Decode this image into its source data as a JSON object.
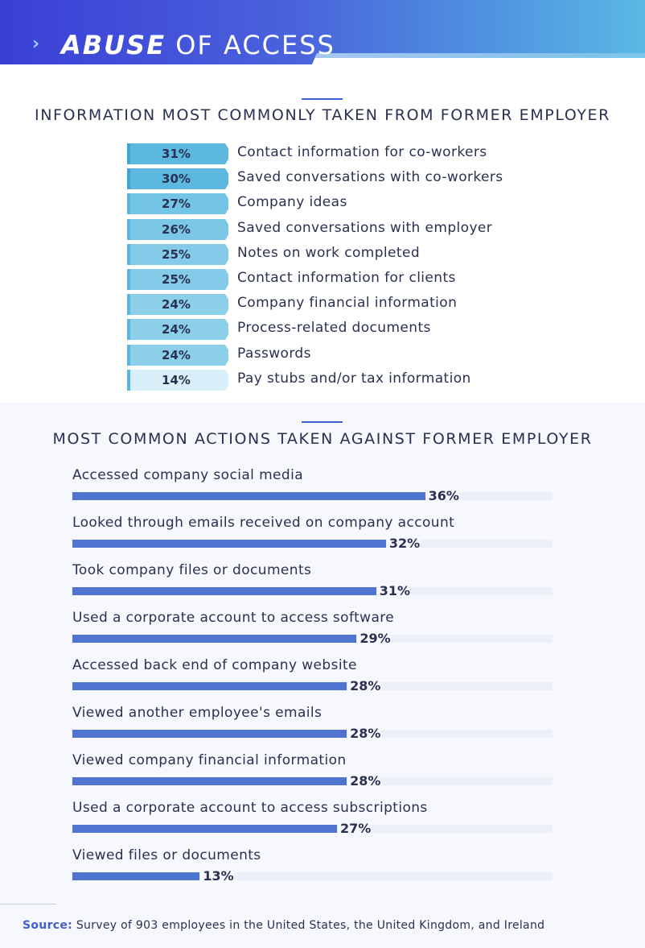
{
  "header": {
    "title_bold": "ABUSE",
    "title_rest": "OF ACCESS",
    "chevron": "›"
  },
  "colors": {
    "banner_start": "#3a3fd6",
    "banner_end": "#5ab6e3",
    "accent": "#3f5ed3",
    "bar_fill": "#4f74cf",
    "text": "#2a3150"
  },
  "chart_data": [
    {
      "type": "bar",
      "title": "INFORMATION MOST COMMONLY TAKEN FROM FORMER EMPLOYER",
      "categories": [
        "Contact information for co-workers",
        "Saved conversations with co-workers",
        "Company ideas",
        "Saved conversations with employer",
        "Notes on work completed",
        "Contact information for clients",
        "Company financial information",
        "Process-related documents",
        "Passwords",
        "Pay stubs and/or tax information"
      ],
      "values": [
        31,
        30,
        27,
        26,
        25,
        25,
        24,
        24,
        24,
        14
      ],
      "value_labels": [
        "31%",
        "30%",
        "27%",
        "26%",
        "25%",
        "25%",
        "24%",
        "24%",
        "24%",
        "14%"
      ],
      "shade_colors": [
        "#5cb8df",
        "#5cb8df",
        "#74c4e5",
        "#7bc7e6",
        "#83cbe8",
        "#83cbe8",
        "#8ccfe9",
        "#8ccfe9",
        "#8ccfe9",
        "#d8eef8"
      ]
    },
    {
      "type": "bar",
      "title": "MOST COMMON ACTIONS TAKEN AGAINST FORMER EMPLOYER",
      "categories": [
        "Accessed company social media",
        "Looked through emails received on company account",
        "Took company files or documents",
        "Used a corporate account to access software",
        "Accessed back end of company website",
        "Viewed another employee's emails",
        "Viewed company financial information",
        "Used a corporate account to access subscriptions",
        "Viewed files or documents"
      ],
      "values": [
        36,
        32,
        31,
        29,
        28,
        28,
        28,
        27,
        13
      ],
      "value_labels": [
        "36%",
        "32%",
        "31%",
        "29%",
        "28%",
        "28%",
        "28%",
        "27%",
        "13%"
      ],
      "xlim": [
        0,
        49
      ]
    }
  ],
  "footer": {
    "source_label": "Source:",
    "source_text": "Survey of 903 employees in the United States, the United Kingdom, and Ireland"
  }
}
